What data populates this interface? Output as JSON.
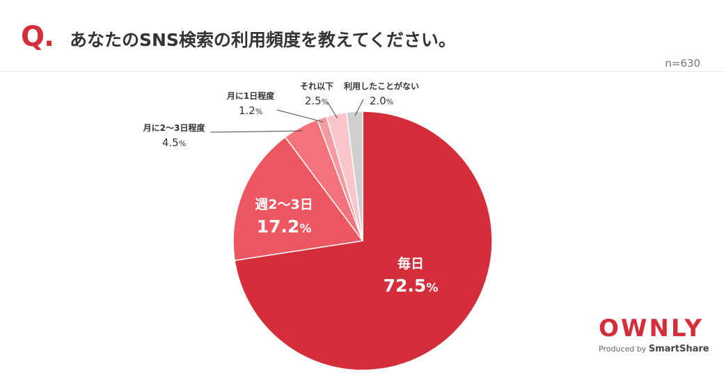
{
  "header": {
    "q_mark": "Q.",
    "title": "あなたのSNS検索の利用頻度を教えてください。",
    "n_label": "n=630"
  },
  "logo": {
    "brand": "OWNLY",
    "produced_by": "Produced by",
    "partner": "SmartShare"
  },
  "chart_data": {
    "type": "pie",
    "title": "あなたのSNS検索の利用頻度を教えてください。",
    "n": "n=630",
    "slices": [
      {
        "label": "毎日",
        "value": 72.5,
        "display": "72.5",
        "unit": "%",
        "color": "#d32e3a",
        "label_style": "inside"
      },
      {
        "label": "週2〜3日",
        "value": 17.2,
        "display": "17.2",
        "unit": "%",
        "color": "#ec5761",
        "label_style": "inside"
      },
      {
        "label": "月に2〜3日程度",
        "value": 4.5,
        "display": "4.5",
        "unit": "%",
        "color": "#f3737c",
        "label_style": "outside"
      },
      {
        "label": "月に1日程度",
        "value": 1.2,
        "display": "1.2",
        "unit": "%",
        "color": "#f59aa1",
        "label_style": "outside"
      },
      {
        "label": "それ以下",
        "value": 2.5,
        "display": "2.5",
        "unit": "%",
        "color": "#f8c6cb",
        "label_style": "outside"
      },
      {
        "label": "利用したことがない",
        "value": 2.0,
        "display": "2.0",
        "unit": "%",
        "color": "#cfcfcf",
        "label_style": "outside"
      }
    ]
  }
}
